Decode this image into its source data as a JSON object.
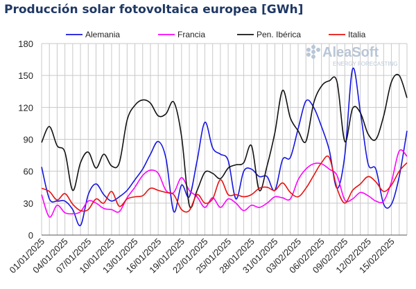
{
  "title": "Producción solar fotovoltaica europea [GWh]",
  "logo": {
    "name": "AleaSoft",
    "tagline": "ENERGY FORECASTING"
  },
  "colors": {
    "title": "#1f3864",
    "grid": "#c8c8c8",
    "logo": "#b8c6d6"
  },
  "chart_data": {
    "type": "line",
    "ylim": [
      0,
      180
    ],
    "yticks": [
      0,
      30,
      60,
      90,
      120,
      150,
      180
    ],
    "xticks": [
      "01/01/2025",
      "04/01/2025",
      "07/01/2025",
      "10/01/2025",
      "13/01/2025",
      "16/01/2025",
      "19/01/2025",
      "22/01/2025",
      "25/01/2025",
      "28/01/2025",
      "31/01/2025",
      "03/02/2025",
      "06/02/2025",
      "09/02/2025",
      "12/02/2025",
      "15/02/2025"
    ],
    "grid": true,
    "legend": "top",
    "x": [
      "01/01",
      "02/01",
      "03/01",
      "04/01",
      "05/01",
      "06/01",
      "07/01",
      "08/01",
      "09/01",
      "10/01",
      "11/01",
      "12/01",
      "13/01",
      "14/01",
      "15/01",
      "16/01",
      "17/01",
      "18/01",
      "19/01",
      "20/01",
      "21/01",
      "22/01",
      "23/01",
      "24/01",
      "25/01",
      "26/01",
      "27/01",
      "28/01",
      "29/01",
      "30/01",
      "31/01",
      "01/02",
      "02/02",
      "03/02",
      "04/02",
      "05/02",
      "06/02",
      "07/02",
      "08/02",
      "09/02",
      "10/02",
      "11/02",
      "12/02",
      "13/02",
      "14/02",
      "15/02",
      "16/02",
      "17/02"
    ],
    "series": [
      {
        "name": "Alemania",
        "color": "#1414e0",
        "values": [
          64,
          34,
          32,
          32,
          24,
          9,
          38,
          48,
          38,
          32,
          36,
          42,
          52,
          62,
          76,
          88,
          72,
          22,
          47,
          36,
          70,
          106,
          82,
          76,
          70,
          34,
          60,
          62,
          55,
          55,
          42,
          71,
          73,
          100,
          126,
          120,
          102,
          80,
          44,
          75,
          156,
          116,
          67,
          62,
          29,
          29,
          55,
          98
        ]
      },
      {
        "name": "Francia",
        "color": "#ff00ff",
        "values": [
          38,
          17,
          28,
          21,
          20,
          22,
          32,
          30,
          25,
          24,
          22,
          35,
          45,
          56,
          61,
          58,
          42,
          40,
          54,
          42,
          36,
          26,
          35,
          26,
          34,
          30,
          23,
          28,
          26,
          30,
          36,
          35,
          34,
          52,
          62,
          67,
          67,
          62,
          56,
          33,
          34,
          40,
          37,
          32,
          32,
          50,
          79,
          74
        ]
      },
      {
        "name": "Pen. Ibérica",
        "color": "#111111",
        "values": [
          87,
          102,
          84,
          78,
          42,
          68,
          78,
          63,
          76,
          65,
          68,
          108,
          122,
          127,
          124,
          112,
          114,
          125,
          93,
          28,
          42,
          59,
          58,
          53,
          63,
          66,
          68,
          84,
          42,
          65,
          96,
          136,
          110,
          98,
          88,
          124,
          140,
          145,
          144,
          88,
          119,
          115,
          95,
          90,
          112,
          144,
          150,
          129
        ]
      },
      {
        "name": "Italia",
        "color": "#e81010",
        "values": [
          44,
          41,
          33,
          39,
          29,
          23,
          24,
          34,
          30,
          41,
          27,
          34,
          36,
          37,
          44,
          42,
          40,
          38,
          24,
          23,
          38,
          30,
          34,
          52,
          38,
          38,
          36,
          38,
          44,
          45,
          42,
          49,
          40,
          36,
          44,
          56,
          68,
          73,
          44,
          30,
          42,
          48,
          55,
          50,
          41,
          47,
          60,
          68
        ]
      }
    ]
  }
}
